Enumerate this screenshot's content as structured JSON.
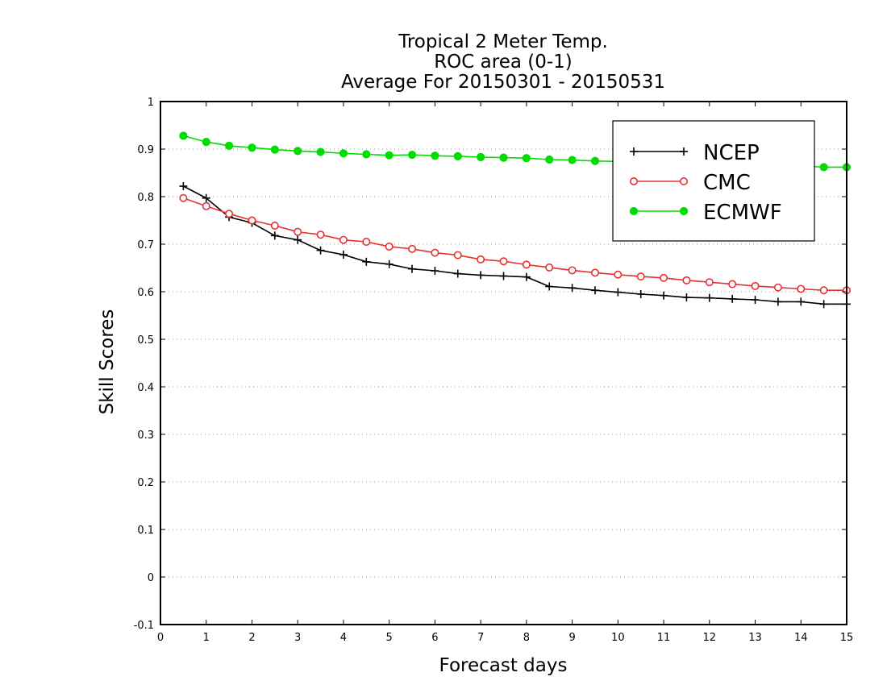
{
  "chart_data": {
    "type": "line",
    "title_lines": [
      "Tropical 2 Meter Temp.",
      "ROC area (0-1)",
      "Average For 20150301 - 20150531"
    ],
    "xlabel": "Forecast days",
    "ylabel": "Skill Scores",
    "xlim": [
      0,
      15
    ],
    "ylim": [
      -0.1,
      1
    ],
    "x_ticks": [
      0,
      1,
      2,
      3,
      4,
      5,
      6,
      7,
      8,
      9,
      10,
      11,
      12,
      13,
      14,
      15
    ],
    "y_ticks": [
      -0.1,
      0,
      0.1,
      0.2,
      0.3,
      0.4,
      0.5,
      0.6,
      0.7,
      0.8,
      0.9,
      1
    ],
    "y_tick_labels": [
      "-0.1",
      "0",
      "0.1",
      "0.2",
      "0.3",
      "0.4",
      "0.5",
      "0.6",
      "0.7",
      "0.8",
      "0.9",
      "1"
    ],
    "grid": "horizontal dotted",
    "legend_position": "top-right",
    "x": [
      0.5,
      1.0,
      1.5,
      2.0,
      2.5,
      3.0,
      3.5,
      4.0,
      4.5,
      5.0,
      5.5,
      6.0,
      6.5,
      7.0,
      7.5,
      8.0,
      8.5,
      9.0,
      9.5,
      10.0,
      10.5,
      11.0,
      11.5,
      12.0,
      12.5,
      13.0,
      13.5,
      14.0,
      14.5,
      15.0
    ],
    "series": [
      {
        "name": "NCEP",
        "color": "#000000",
        "marker": "plus",
        "values": [
          0.822,
          0.797,
          0.757,
          0.745,
          0.718,
          0.709,
          0.687,
          0.678,
          0.663,
          0.658,
          0.648,
          0.644,
          0.638,
          0.635,
          0.633,
          0.631,
          0.611,
          0.608,
          0.603,
          0.599,
          0.595,
          0.592,
          0.588,
          0.587,
          0.585,
          0.583,
          0.579,
          0.579,
          0.574,
          0.574
        ]
      },
      {
        "name": "CMC",
        "color": "#e83030",
        "marker": "open-circle",
        "values": [
          0.797,
          0.78,
          0.764,
          0.75,
          0.739,
          0.726,
          0.72,
          0.709,
          0.705,
          0.695,
          0.69,
          0.682,
          0.677,
          0.668,
          0.664,
          0.657,
          0.651,
          0.645,
          0.64,
          0.636,
          0.632,
          0.629,
          0.624,
          0.62,
          0.616,
          0.612,
          0.609,
          0.606,
          0.603,
          0.603
        ]
      },
      {
        "name": "ECMWF",
        "color": "#00dd00",
        "marker": "filled-circle",
        "values": [
          0.928,
          0.915,
          0.907,
          0.903,
          0.899,
          0.896,
          0.894,
          0.891,
          0.889,
          0.887,
          0.888,
          0.886,
          0.885,
          0.883,
          0.882,
          0.881,
          0.878,
          0.877,
          0.875,
          0.874,
          0.873,
          0.871,
          0.87,
          0.869,
          0.868,
          0.867,
          0.866,
          0.865,
          0.862,
          0.862
        ]
      }
    ]
  }
}
